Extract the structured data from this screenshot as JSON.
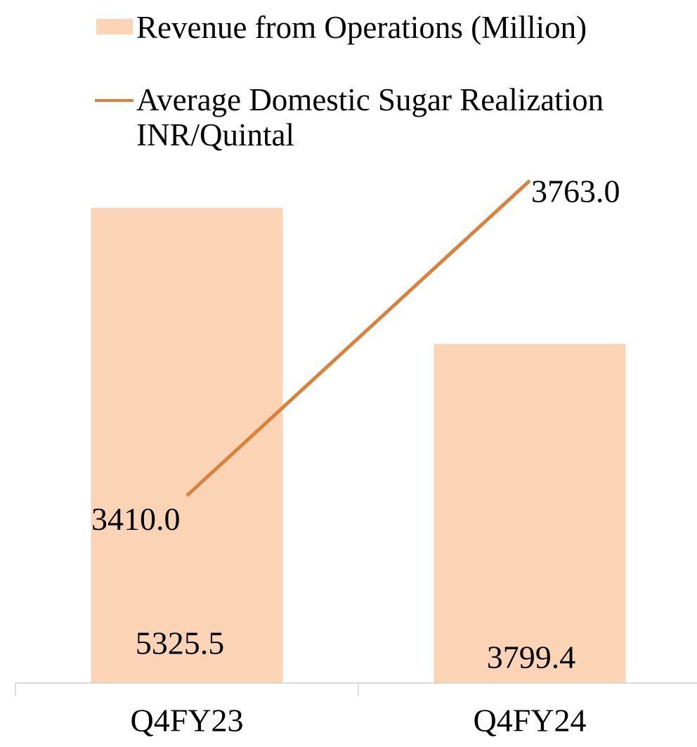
{
  "chart_data": {
    "type": "bar-line",
    "categories": [
      "Q4FY23",
      "Q4FY24"
    ],
    "series": [
      {
        "name": "Revenue from Operations (Million)",
        "type": "bar",
        "color": "#fad4b4",
        "values": [
          5325.5,
          3799.4
        ]
      },
      {
        "name": "Average Domestic Sugar Realization INR/Quintal",
        "type": "line",
        "axis": "y2",
        "color": "#d8823c",
        "values": [
          3410,
          3763
        ],
        "value_labels": [
          "3410.0",
          "3763.0"
        ]
      }
    ],
    "ylim": [
      0,
      6000
    ],
    "y2lim": [
      3200,
      3800
    ],
    "legend": "top"
  }
}
